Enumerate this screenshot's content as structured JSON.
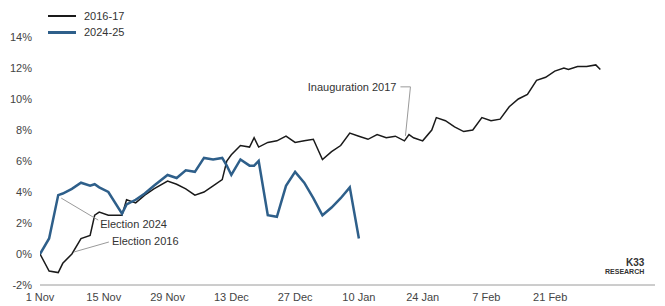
{
  "chart_data": {
    "type": "line",
    "legend": "top-left",
    "grid": false,
    "source": "K33 RESEARCH",
    "x": [
      0,
      2,
      4,
      5,
      7,
      9,
      11,
      12,
      13,
      15,
      18,
      19,
      21,
      23,
      25,
      28,
      30,
      32,
      34,
      36,
      38,
      40,
      41,
      42,
      44,
      46,
      47,
      48,
      50,
      52,
      54,
      56,
      58,
      60,
      62,
      64,
      66,
      68,
      70,
      72,
      74,
      76,
      78,
      80,
      81,
      82,
      84,
      86,
      87,
      89,
      91,
      93,
      95,
      97,
      99,
      101,
      103,
      105,
      107,
      109,
      111,
      113,
      115,
      116,
      118,
      120,
      122,
      123
    ],
    "series": [
      {
        "name": "2016-17",
        "color": "#1a1a1a",
        "values": [
          0,
          -1.1,
          -1.2,
          -0.6,
          0.0,
          1.0,
          1.2,
          2.5,
          2.7,
          2.5,
          2.5,
          3.5,
          3.3,
          3.8,
          4.2,
          4.7,
          4.5,
          4.2,
          3.8,
          4.0,
          4.4,
          4.8,
          6.0,
          6.4,
          7.0,
          6.9,
          7.5,
          6.9,
          7.2,
          7.3,
          7.6,
          7.2,
          7.3,
          7.4,
          6.1,
          6.6,
          7.0,
          7.8,
          7.6,
          7.4,
          7.7,
          7.5,
          7.6,
          7.3,
          7.7,
          7.5,
          7.3,
          8.0,
          8.8,
          8.6,
          8.2,
          7.9,
          8.0,
          8.8,
          8.6,
          8.7,
          9.5,
          10.0,
          10.3,
          11.2,
          11.4,
          11.8,
          12.0,
          11.9,
          12.1,
          12.1,
          12.2,
          11.9
        ]
      },
      {
        "name": "2024-25",
        "color": "#2e5f8a",
        "values": [
          0,
          1.0,
          3.8,
          3.9,
          4.2,
          4.6,
          4.4,
          4.5,
          4.3,
          4.0,
          2.6,
          3.2,
          3.5,
          3.9,
          4.4,
          5.1,
          4.9,
          5.4,
          5.3,
          6.2,
          6.1,
          6.2,
          5.7,
          5.1,
          6.1,
          5.7,
          5.7,
          6.0,
          2.5,
          2.4,
          4.4,
          5.3,
          4.6,
          3.6,
          2.5,
          3.0,
          3.6,
          4.3,
          1.0,
          null,
          null,
          null,
          null,
          null,
          null,
          null,
          null,
          null,
          null,
          null,
          null,
          null,
          null,
          null,
          null,
          null,
          null,
          null,
          null,
          null,
          null,
          null,
          null,
          null,
          null,
          null,
          null,
          null
        ]
      }
    ],
    "xlim": [
      0,
      135
    ],
    "xticks": [
      {
        "value": 0,
        "label": "1 Nov"
      },
      {
        "value": 14,
        "label": "15 Nov"
      },
      {
        "value": 28,
        "label": "29 Nov"
      },
      {
        "value": 42,
        "label": "13 Dec"
      },
      {
        "value": 56,
        "label": "27 Dec"
      },
      {
        "value": 70,
        "label": "10 Jan"
      },
      {
        "value": 84,
        "label": "24 Jan"
      },
      {
        "value": 98,
        "label": "7 Feb"
      },
      {
        "value": 112,
        "label": "21 Feb"
      }
    ],
    "ylim": [
      -2,
      14
    ],
    "yticks": [
      {
        "value": -2,
        "label": "-2%"
      },
      {
        "value": 0,
        "label": "0%"
      },
      {
        "value": 2,
        "label": "2%"
      },
      {
        "value": 4,
        "label": "4%"
      },
      {
        "value": 6,
        "label": "6%"
      },
      {
        "value": 8,
        "label": "8%"
      },
      {
        "value": 10,
        "label": "10%"
      },
      {
        "value": 12,
        "label": "12%"
      },
      {
        "value": 14,
        "label": "14%"
      }
    ],
    "annotations": [
      {
        "text": "Election 2024",
        "x": 4,
        "series": "2024-25"
      },
      {
        "text": "Election 2016",
        "x": 7,
        "series": "2016-17"
      },
      {
        "text": "Inauguration 2017",
        "x": 80,
        "series": "2016-17"
      }
    ]
  }
}
